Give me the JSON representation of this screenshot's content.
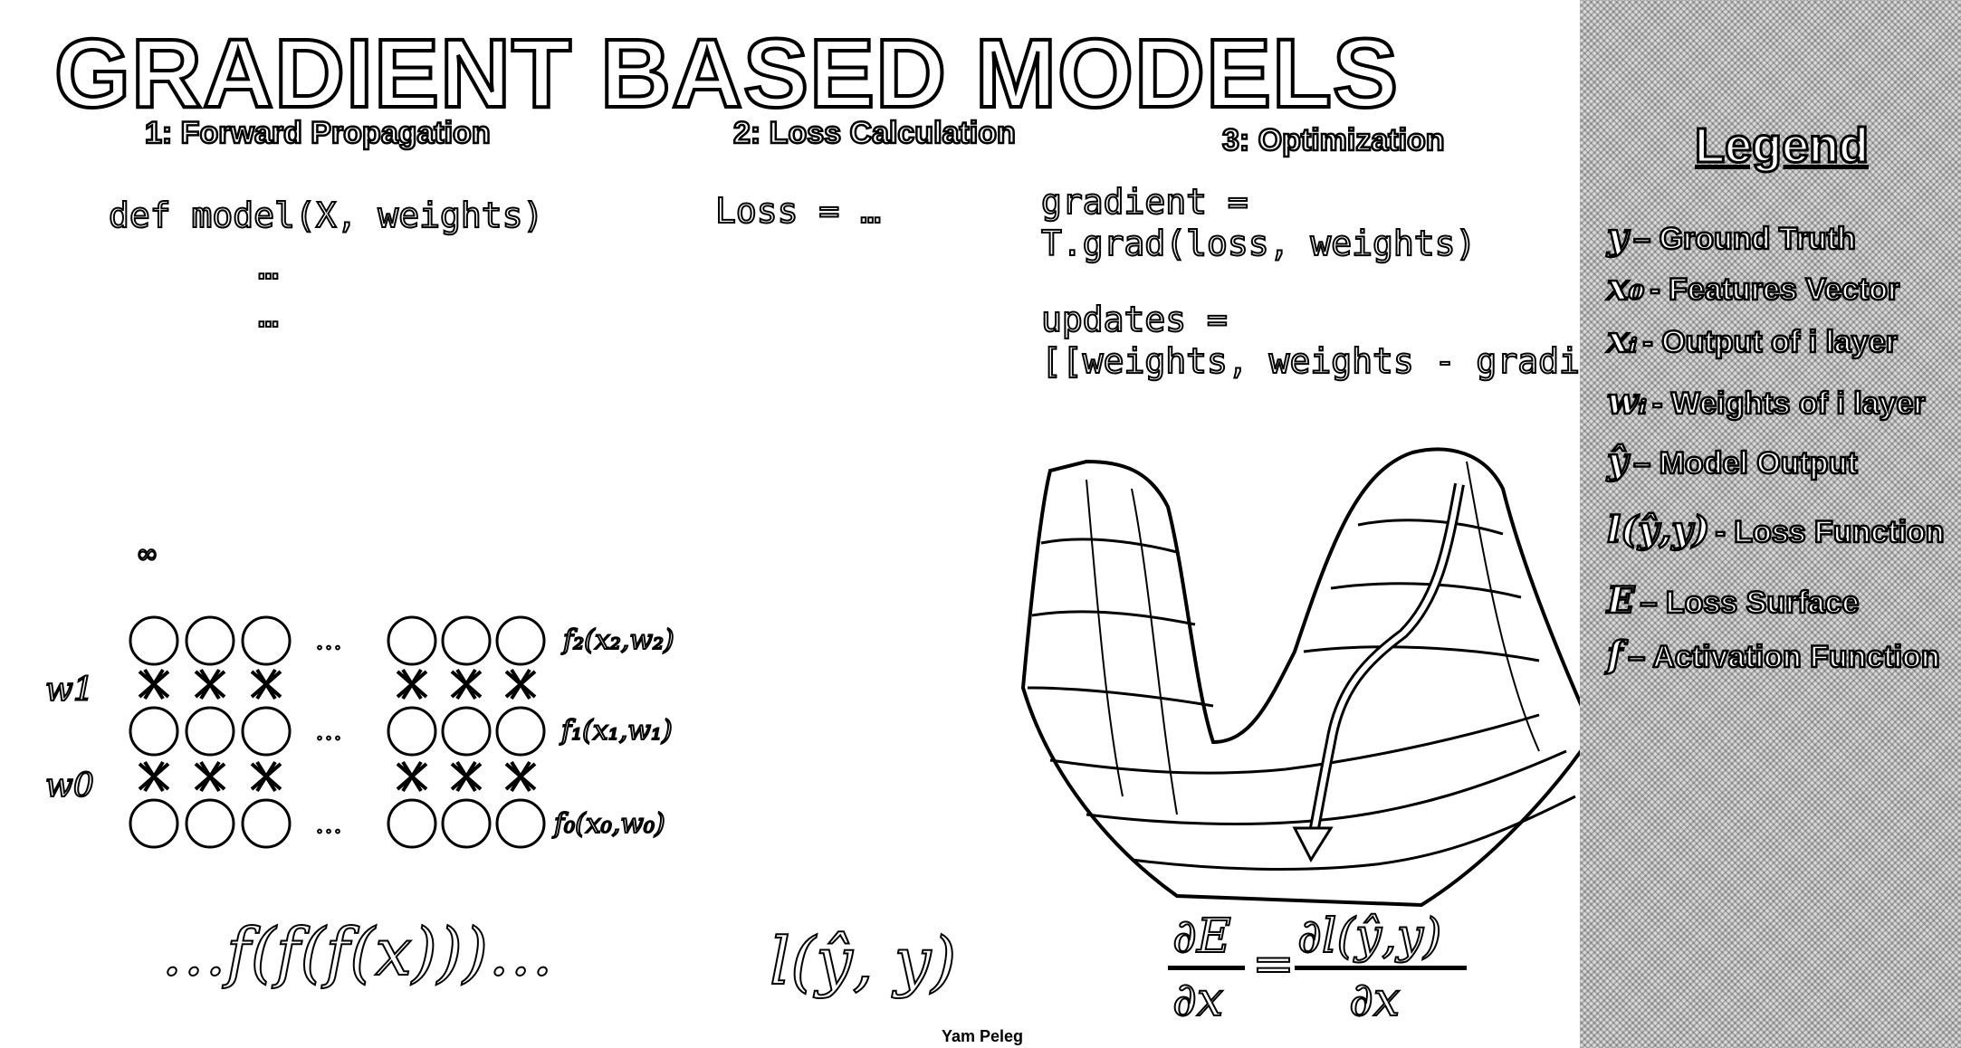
{
  "title": "GRADIENT BASED MODELS",
  "sections": [
    {
      "heading": "1: Forward Propagation"
    },
    {
      "heading": "2: Loss Calculation"
    },
    {
      "heading": "3: Optimization"
    }
  ],
  "forward_code": {
    "line1": "def model(X, weights)",
    "line2": "…",
    "line3": "…"
  },
  "loss_code": "Loss = …",
  "optimization_code": {
    "line1": "gradient =",
    "line2": "T.grad(loss, weights)",
    "line3": "updates =",
    "line4": "[[weights, weights - gradient]]"
  },
  "network": {
    "infinity_label": "∞",
    "ellipsis": "…",
    "weight_labels": [
      "w1",
      "w0"
    ],
    "layer_labels": [
      "f₂(x₂,w₂)",
      "f₁(x₁,w₁)",
      "f₀(x₀,w₀)"
    ]
  },
  "formulas": {
    "forward": "…f(f(f(x)))…",
    "loss": "l(ŷ, y)",
    "gradient_lhs_top": "∂E",
    "gradient_lhs_bottom": "∂x",
    "gradient_eq": "=",
    "gradient_rhs_top": "∂l(ŷ,y)",
    "gradient_rhs_bottom": "∂x"
  },
  "legend": {
    "title": "Legend",
    "items": [
      {
        "symbol": "y",
        "text": "– Ground Truth"
      },
      {
        "symbol": "x₀",
        "text": "- Features Vector"
      },
      {
        "symbol": "xᵢ",
        "text": "- Output of i layer"
      },
      {
        "symbol": "wᵢ",
        "text": "- Weights of i layer"
      },
      {
        "symbol": "ŷ",
        "text": "– Model Output"
      },
      {
        "symbol": "l(ŷ,y)",
        "text": "- Loss Function"
      },
      {
        "symbol": "E",
        "text": "– Loss Surface"
      },
      {
        "symbol": "f",
        "text": "– Activation Function"
      }
    ]
  },
  "credit": "Yam Peleg"
}
